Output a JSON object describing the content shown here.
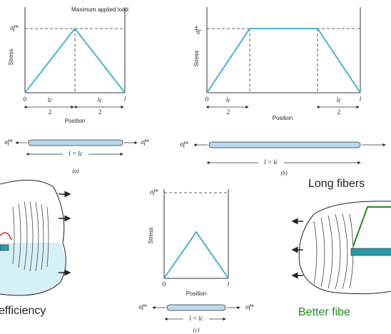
{
  "panel_a": {
    "annotation": "Maximum applied load",
    "y_label": "Stress",
    "stress_label": "σf*",
    "x_label": "Position",
    "origin": "0",
    "end": "l",
    "half_left": {
      "num": "lc",
      "den": "2"
    },
    "half_right": {
      "num": "lc",
      "den": "2"
    },
    "force_left": "σf*",
    "force_right": "σf*",
    "length": "l = lc",
    "caption": "(a)"
  },
  "panel_b": {
    "y_label": "Stress",
    "stress_label": "σf*",
    "x_label": "Position",
    "origin": "0",
    "end": "l",
    "half_left": {
      "num": "lc",
      "den": "2"
    },
    "half_right": {
      "num": "lc",
      "den": "2"
    },
    "force_left": "σf*",
    "length": "l > lc",
    "caption": "(b)"
  },
  "panel_c": {
    "y_label": "Stress",
    "stress_label": "σf*",
    "x_label": "Position",
    "origin": "0",
    "end": "l",
    "force_left": "σf*",
    "force_right": "σf*",
    "length": "l < lc",
    "caption": "(c)"
  },
  "left_inset": {
    "caption": "efficiency"
  },
  "right_inset": {
    "heading": "Long fibers",
    "caption": "Better fibe"
  }
}
